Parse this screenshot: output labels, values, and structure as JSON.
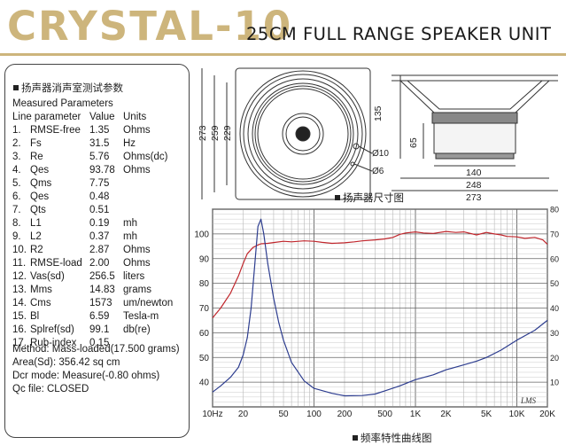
{
  "header": {
    "brand": "CRYSTAL-10",
    "subtitle": "25CM FULL RANGE SPEAKER UNIT"
  },
  "params": {
    "cn_title": "扬声器消声室测试参数",
    "title": "Measured Parameters",
    "col_name": "Line parameter",
    "col_value": "Value",
    "col_unit": "Units",
    "rows": [
      {
        "no": "1.",
        "name": "RMSE-free",
        "value": "1.35",
        "unit": "Ohms"
      },
      {
        "no": "2.",
        "name": "Fs",
        "value": "31.5",
        "unit": "Hz"
      },
      {
        "no": "3.",
        "name": "Re",
        "value": "5.76",
        "unit": "Ohms(dc)"
      },
      {
        "no": "4.",
        "name": "Qes",
        "value": "93.78",
        "unit": "Ohms"
      },
      {
        "no": "5.",
        "name": "Qms",
        "value": "7.75",
        "unit": ""
      },
      {
        "no": "6.",
        "name": "Qes",
        "value": "0.48",
        "unit": ""
      },
      {
        "no": "7.",
        "name": "Qts",
        "value": "0.51",
        "unit": ""
      },
      {
        "no": "8.",
        "name": "L1",
        "value": "0.19",
        "unit": "mh"
      },
      {
        "no": "9.",
        "name": "L2",
        "value": "0.37",
        "unit": "mh"
      },
      {
        "no": "10.",
        "name": "R2",
        "value": "2.87",
        "unit": "Ohms"
      },
      {
        "no": "11.",
        "name": "RMSE-load",
        "value": "2.00",
        "unit": "Ohms"
      },
      {
        "no": "12.",
        "name": "Vas(sd)",
        "value": "256.5",
        "unit": "liters"
      },
      {
        "no": "13.",
        "name": "Mms",
        "value": "14.83",
        "unit": "grams"
      },
      {
        "no": "14.",
        "name": "Cms",
        "value": "1573",
        "unit": "um/newton"
      },
      {
        "no": "15.",
        "name": "Bl",
        "value": "6.59",
        "unit": "Tesla-m"
      },
      {
        "no": "16.",
        "name": "Splref(sd)",
        "value": "99.1",
        "unit": "db(re)"
      },
      {
        "no": "17.",
        "name": "Rub-index",
        "value": "0.15",
        "unit": ""
      }
    ],
    "notes": [
      "Method:   Mass-loaded(17.500 grams)",
      "Area(Sd):   356.42 sq cm",
      "Dcr mode:   Measure(-0.80 ohms)",
      "Qc file:   CLOSED"
    ]
  },
  "drawing": {
    "caption": "扬声器尺寸图",
    "dims_front": [
      "273",
      "259",
      "229"
    ],
    "dims_side_h": [
      "135",
      "65"
    ],
    "dims_holes": [
      "Ø10",
      "Ø6"
    ],
    "dims_bottom": [
      "140",
      "248",
      "273"
    ]
  },
  "chart_caption": "频率特性曲线图",
  "chart_data": {
    "type": "line",
    "x_scale": "log",
    "xlim": [
      10,
      20000
    ],
    "x_ticks": [
      10,
      20,
      50,
      100,
      200,
      500,
      1000,
      2000,
      5000,
      10000,
      20000
    ],
    "x_tick_labels": [
      "10Hz",
      "20",
      "50",
      "100",
      "200",
      "500",
      "1K",
      "2K",
      "5K",
      "10K",
      "20K"
    ],
    "left_ylim": [
      30,
      110
    ],
    "left_ticks": [
      40,
      50,
      60,
      70,
      80,
      90,
      100
    ],
    "right_ylim": [
      0,
      80
    ],
    "right_ticks": [
      10,
      20,
      30,
      40,
      50,
      60,
      70,
      80
    ],
    "right_tick_labels": [
      "10",
      "20",
      "30",
      "40",
      "50",
      "60",
      "70",
      "80"
    ],
    "grid": true,
    "watermark": "LMS",
    "series": [
      {
        "color": "#c0262c",
        "axis": "left",
        "x": [
          10,
          12,
          15,
          18,
          20,
          22,
          25,
          28,
          30,
          35,
          40,
          50,
          60,
          80,
          100,
          120,
          150,
          200,
          250,
          300,
          400,
          500,
          600,
          700,
          800,
          1000,
          1200,
          1500,
          2000,
          2500,
          3000,
          4000,
          5000,
          6000,
          7000,
          8000,
          10000,
          12000,
          15000,
          18000,
          20000
        ],
        "y": [
          66,
          70,
          76,
          83,
          88,
          92,
          94.5,
          95.5,
          96,
          96.2,
          96.5,
          97,
          96.8,
          97.2,
          97,
          96.6,
          96.2,
          96.4,
          96.8,
          97.2,
          97.6,
          98,
          98.6,
          99.8,
          100.4,
          100.8,
          100.4,
          100.2,
          101,
          100.6,
          100.8,
          99.6,
          100.6,
          100,
          99.6,
          99,
          98.8,
          98.2,
          98.6,
          97.6,
          95.8
        ]
      },
      {
        "color": "#2d3d8f",
        "axis": "right",
        "x": [
          10,
          12,
          15,
          18,
          20,
          22,
          24,
          26,
          28,
          30,
          32,
          35,
          40,
          45,
          50,
          60,
          80,
          100,
          150,
          200,
          300,
          400,
          500,
          700,
          1000,
          1500,
          2000,
          3000,
          4000,
          5000,
          7000,
          10000,
          15000,
          20000
        ],
        "y": [
          6,
          8.5,
          12,
          16,
          21,
          28,
          40,
          57,
          73,
          76,
          70,
          58,
          44,
          34,
          27,
          18,
          10.5,
          7.5,
          5.5,
          4.5,
          4.6,
          5.2,
          6.5,
          8.5,
          11,
          13,
          15,
          17,
          18.5,
          20,
          23,
          27,
          31,
          35
        ]
      }
    ]
  }
}
